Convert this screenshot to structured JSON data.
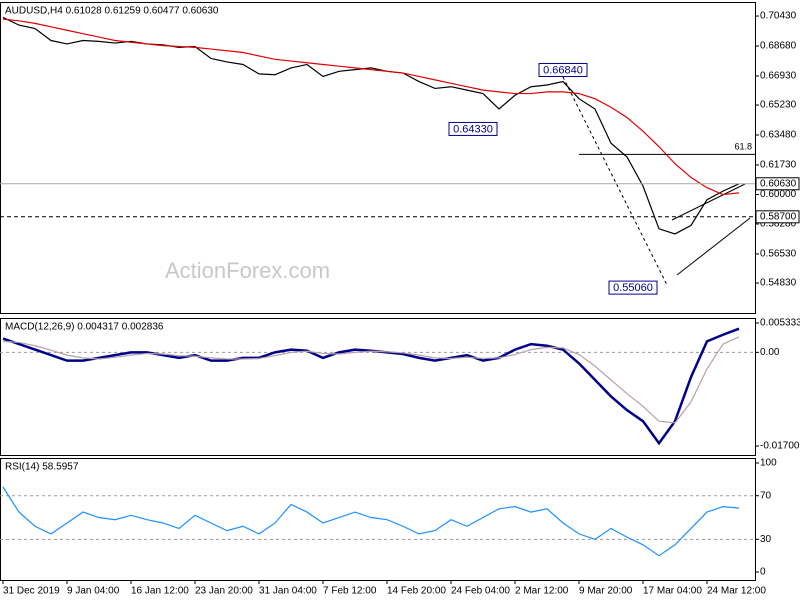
{
  "chart_data": [
    {
      "type": "line",
      "title": "AUDUSD,H4  0.61028 0.61259 0.60477 0.60630",
      "watermark": "ActionForex.com",
      "ylim": [
        0.5308,
        0.7125
      ],
      "yticks": [
        {
          "value": 0.7043,
          "label": "0.70430"
        },
        {
          "value": 0.6868,
          "label": "0.68680"
        },
        {
          "value": 0.6693,
          "label": "0.66930"
        },
        {
          "value": 0.6523,
          "label": "0.65230"
        },
        {
          "value": 0.6348,
          "label": "0.63480"
        },
        {
          "value": 0.6173,
          "label": "0.61730"
        },
        {
          "value": 0.6,
          "label": "0.60000"
        },
        {
          "value": 0.5828,
          "label": "0.58280"
        },
        {
          "value": 0.5653,
          "label": "0.56530"
        },
        {
          "value": 0.5483,
          "label": "0.54830"
        }
      ],
      "series": [
        {
          "name": "AUDUSD",
          "color": "#000000",
          "values": [
            0.7035,
            0.699,
            0.697,
            0.69,
            0.688,
            0.69,
            0.6895,
            0.6885,
            0.6895,
            0.688,
            0.6875,
            0.686,
            0.6865,
            0.6795,
            0.6775,
            0.676,
            0.6705,
            0.67,
            0.674,
            0.676,
            0.669,
            0.672,
            0.673,
            0.674,
            0.672,
            0.671,
            0.666,
            0.662,
            0.663,
            0.661,
            0.659,
            0.65,
            0.658,
            0.663,
            0.664,
            0.666,
            0.656,
            0.65,
            0.63,
            0.622,
            0.605,
            0.58,
            0.577,
            0.582,
            0.597,
            0.602,
            0.6063
          ]
        },
        {
          "name": "MA",
          "color": "#e00000",
          "values": [
            0.7025,
            0.7015,
            0.7,
            0.698,
            0.696,
            0.694,
            0.692,
            0.69,
            0.689,
            0.688,
            0.687,
            0.6865,
            0.686,
            0.685,
            0.684,
            0.683,
            0.681,
            0.679,
            0.678,
            0.677,
            0.676,
            0.675,
            0.674,
            0.673,
            0.672,
            0.671,
            0.669,
            0.667,
            0.665,
            0.663,
            0.661,
            0.66,
            0.659,
            0.659,
            0.66,
            0.66,
            0.659,
            0.656,
            0.651,
            0.645,
            0.637,
            0.628,
            0.618,
            0.61,
            0.604,
            0.6,
            0.601
          ]
        }
      ],
      "levels": [
        {
          "value": 0.6063,
          "label": "0.60630",
          "style": "solid"
        },
        {
          "value": 0.587,
          "label": "0.58700",
          "style": "dashed"
        }
      ],
      "fib": {
        "value": 0.6235,
        "label": "61.8",
        "x": 36
      },
      "annotations": [
        {
          "x": 35,
          "value": 0.6684,
          "label": "0.66840"
        },
        {
          "x": 31,
          "value": 0.6433,
          "label": "0.64330"
        },
        {
          "x": 41,
          "value": 0.5506,
          "label": "0.55060"
        }
      ]
    },
    {
      "type": "line",
      "title": "MACD(12,26,9) 0.004317 0.002836",
      "ylim": [
        -0.01864,
        0.00624
      ],
      "yticks": [
        0.005333,
        {
          "value": 0,
          "label": "0.00"
        },
        -0.017008
      ],
      "series": [
        {
          "name": "MACD",
          "color": "#00008b",
          "values": [
            0.0025,
            0.0015,
            0.0005,
            -0.0005,
            -0.0015,
            -0.0015,
            -0.001,
            -0.0005,
            0,
            0,
            -0.0005,
            -0.001,
            -0.0005,
            -0.0015,
            -0.0015,
            -0.001,
            -0.001,
            0,
            0.0005,
            0.0003,
            -0.001,
            0,
            0.0005,
            0.0003,
            0,
            -0.0003,
            -0.001,
            -0.0015,
            -0.001,
            -0.0005,
            -0.0015,
            -0.001,
            0.0005,
            0.0015,
            0.0012,
            0.0005,
            -0.002,
            -0.005,
            -0.008,
            -0.0105,
            -0.0125,
            -0.0165,
            -0.0125,
            -0.0045,
            0.002,
            0.0032,
            0.0043
          ]
        },
        {
          "name": "Signal",
          "color": "#b8a0a8",
          "values": [
            0.002,
            0.0018,
            0.0012,
            0.0004,
            -0.0005,
            -0.001,
            -0.0012,
            -0.0009,
            -0.0005,
            -0.0002,
            -0.0003,
            -0.0006,
            -0.0007,
            -0.001,
            -0.0012,
            -0.0012,
            -0.0011,
            -0.0006,
            0,
            0.0002,
            -0.0002,
            -0.0003,
            0,
            0.0002,
            0.0001,
            -0.0001,
            -0.0005,
            -0.001,
            -0.0011,
            -0.0009,
            -0.0011,
            -0.001,
            -0.0004,
            0.0005,
            0.0009,
            0.0008,
            -0.0004,
            -0.0025,
            -0.005,
            -0.0075,
            -0.0098,
            -0.0125,
            -0.0128,
            -0.009,
            -0.003,
            0.0015,
            0.0028
          ]
        }
      ]
    },
    {
      "type": "line",
      "title": "RSI(14) 58.5957",
      "ylim": [
        -7.3,
        104.6
      ],
      "yticks": [
        100,
        70,
        30,
        0
      ],
      "xlim": [
        0,
        47
      ],
      "x": [
        0,
        1,
        2,
        3,
        4,
        5,
        6,
        7,
        8,
        9,
        10,
        11,
        12,
        13,
        14,
        15,
        16,
        17,
        18,
        19,
        20,
        21,
        22,
        23,
        24,
        25,
        26,
        27,
        28,
        29,
        30,
        31,
        32,
        33,
        34,
        35,
        36,
        37,
        38,
        39,
        40,
        41,
        42,
        43,
        44,
        45,
        46
      ],
      "xticks": [
        {
          "value": 0,
          "label": "31 Dec 2019"
        },
        {
          "value": 4,
          "label": "9 Jan 04:00"
        },
        {
          "value": 8,
          "label": "16 Jan 12:00"
        },
        {
          "value": 12,
          "label": "23 Jan 20:00"
        },
        {
          "value": 16,
          "label": "31 Jan 04:00"
        },
        {
          "value": 20,
          "label": "7 Feb 12:00"
        },
        {
          "value": 24,
          "label": "14 Feb 20:00"
        },
        {
          "value": 28,
          "label": "24 Feb 04:00"
        },
        {
          "value": 32,
          "label": "2 Mar 12:00"
        },
        {
          "value": 36,
          "label": "9 Mar 20:00"
        },
        {
          "value": 40,
          "label": "17 Mar 04:00"
        },
        {
          "value": 44,
          "label": "24 Mar 12:00"
        }
      ],
      "series": [
        {
          "name": "RSI",
          "color": "#1e90ff",
          "values": [
            78,
            55,
            42,
            35,
            45,
            55,
            50,
            48,
            52,
            48,
            45,
            40,
            52,
            45,
            38,
            42,
            35,
            45,
            62,
            55,
            45,
            50,
            55,
            50,
            48,
            42,
            35,
            38,
            48,
            42,
            50,
            58,
            60,
            55,
            58,
            45,
            35,
            30,
            40,
            32,
            25,
            15,
            25,
            40,
            55,
            60,
            58.6
          ]
        }
      ]
    }
  ]
}
